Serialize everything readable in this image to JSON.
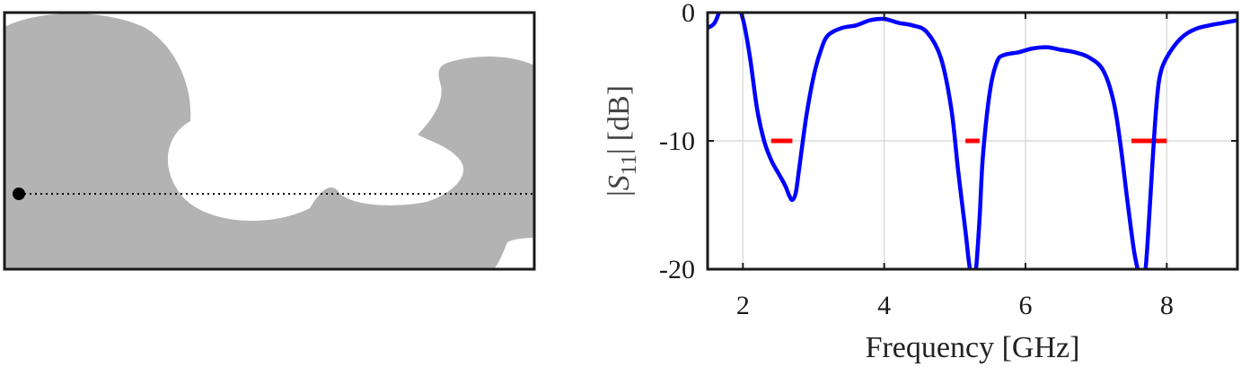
{
  "geometry_panel": {
    "shape_color": "#b3b3b3",
    "feed_marker_color": "#000000"
  },
  "chart_data": {
    "type": "line",
    "xlabel": "Frequency [GHz]",
    "ylabel": {
      "open": "|",
      "symbol": "S",
      "subscript": "11",
      "close": "|",
      "unit": "[dB]"
    },
    "xlim": [
      1.5,
      9.0
    ],
    "ylim": [
      -20,
      0
    ],
    "xticks": [
      2,
      4,
      6,
      8
    ],
    "xtick_labels": [
      "2",
      "4",
      "6",
      "8"
    ],
    "yticks": [
      0,
      -10,
      -20
    ],
    "ytick_labels": [
      "0",
      "-10",
      "-20"
    ],
    "grid": true,
    "series": [
      {
        "color": "#0000ff",
        "x": [
          1.5,
          1.6,
          1.7,
          1.8,
          1.9,
          2.0,
          2.1,
          2.2,
          2.3,
          2.4,
          2.5,
          2.6,
          2.65,
          2.7,
          2.75,
          2.8,
          2.9,
          3.0,
          3.1,
          3.2,
          3.4,
          3.6,
          3.8,
          4.0,
          4.2,
          4.4,
          4.6,
          4.8,
          4.95,
          5.05,
          5.15,
          5.2,
          5.25,
          5.3,
          5.35,
          5.4,
          5.5,
          5.6,
          5.7,
          5.9,
          6.1,
          6.3,
          6.5,
          6.7,
          6.9,
          7.1,
          7.25,
          7.35,
          7.45,
          7.55,
          7.65,
          7.7,
          7.75,
          7.8,
          7.85,
          7.9,
          8.0,
          8.2,
          8.4,
          8.6,
          8.8,
          9.0
        ],
        "y": [
          -1.2,
          -0.8,
          0.5,
          1.2,
          0.8,
          -0.5,
          -3.5,
          -7.5,
          -10.0,
          -11.5,
          -12.5,
          -13.5,
          -14.2,
          -14.6,
          -14.0,
          -12.0,
          -8.0,
          -5.0,
          -3.0,
          -1.8,
          -1.2,
          -1.0,
          -0.6,
          -0.5,
          -0.8,
          -1.0,
          -1.5,
          -3.5,
          -7.5,
          -12.5,
          -17.0,
          -19.5,
          -21.0,
          -20.0,
          -16.0,
          -11.0,
          -6.0,
          -3.8,
          -3.3,
          -3.1,
          -2.8,
          -2.7,
          -2.9,
          -3.1,
          -3.5,
          -4.5,
          -7.0,
          -10.5,
          -15.0,
          -19.0,
          -21.0,
          -20.0,
          -16.0,
          -11.5,
          -7.5,
          -5.0,
          -3.5,
          -2.0,
          -1.3,
          -1.0,
          -0.8,
          -0.6
        ]
      }
    ],
    "target_bands": {
      "color": "#ff0000",
      "level_db": -10,
      "ranges_ghz": [
        [
          2.4,
          2.7
        ],
        [
          5.15,
          5.35
        ],
        [
          7.5,
          8.0
        ]
      ]
    }
  }
}
